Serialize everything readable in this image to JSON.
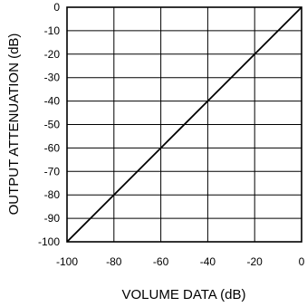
{
  "chart_data": {
    "type": "line",
    "title": "",
    "xlabel": "VOLUME DATA (dB)",
    "ylabel": "OUTPUT ATTENUATION (dB)",
    "xlim": [
      -100,
      0
    ],
    "ylim": [
      -100,
      0
    ],
    "grid": true,
    "x_ticks": [
      -100,
      -80,
      -60,
      -40,
      -20,
      0
    ],
    "x_tick_labels": [
      "-100",
      "-80",
      "-60",
      "-40",
      "-20",
      "0"
    ],
    "y_ticks": [
      0,
      -10,
      -20,
      -30,
      -40,
      -50,
      -60,
      -70,
      -80,
      -90,
      -100
    ],
    "y_tick_labels": [
      "0",
      "-10",
      "-20",
      "-30",
      "-40",
      "-50",
      "-60",
      "-70",
      "-80",
      "-90",
      "-100"
    ],
    "series": [
      {
        "x": [
          -100,
          0
        ],
        "y": [
          -100,
          0
        ]
      }
    ],
    "colors": {
      "line": "#000000",
      "grid": "#000000",
      "background": "#ffffff"
    }
  }
}
